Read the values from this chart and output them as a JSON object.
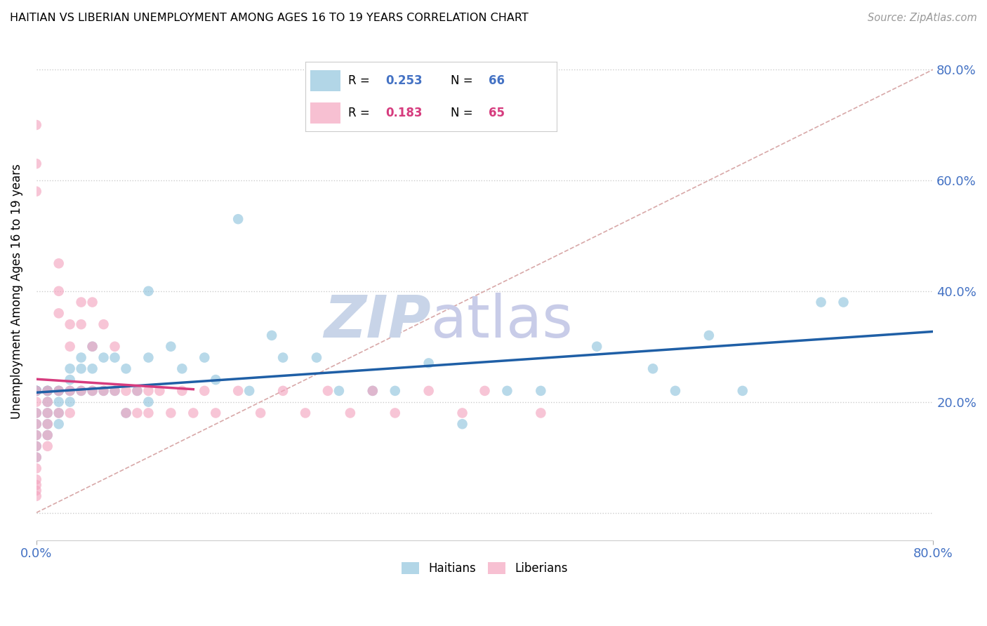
{
  "title": "HAITIAN VS LIBERIAN UNEMPLOYMENT AMONG AGES 16 TO 19 YEARS CORRELATION CHART",
  "source": "Source: ZipAtlas.com",
  "ylabel": "Unemployment Among Ages 16 to 19 years",
  "xlim": [
    0.0,
    0.8
  ],
  "ylim": [
    -0.05,
    0.85
  ],
  "haitians_color": "#92c5de",
  "liberians_color": "#f4a6c0",
  "haitians_line_color": "#1f5fa6",
  "liberians_line_color": "#d63c7e",
  "diagonal_color": "#d8a8a8",
  "watermark_zip_color": "#c8d4e8",
  "watermark_atlas_color": "#c8cce8",
  "haitians_x": [
    0.0,
    0.0,
    0.0,
    0.0,
    0.0,
    0.0,
    0.0,
    0.0,
    0.0,
    0.0,
    0.01,
    0.01,
    0.01,
    0.01,
    0.01,
    0.01,
    0.01,
    0.02,
    0.02,
    0.02,
    0.02,
    0.02,
    0.03,
    0.03,
    0.03,
    0.03,
    0.04,
    0.04,
    0.04,
    0.05,
    0.05,
    0.05,
    0.06,
    0.06,
    0.07,
    0.07,
    0.08,
    0.08,
    0.09,
    0.1,
    0.1,
    0.1,
    0.12,
    0.13,
    0.15,
    0.16,
    0.18,
    0.19,
    0.21,
    0.22,
    0.25,
    0.27,
    0.3,
    0.32,
    0.35,
    0.38,
    0.42,
    0.45,
    0.5,
    0.55,
    0.57,
    0.6,
    0.63,
    0.7,
    0.72
  ],
  "haitians_y": [
    0.22,
    0.22,
    0.22,
    0.22,
    0.22,
    0.18,
    0.16,
    0.14,
    0.12,
    0.1,
    0.22,
    0.22,
    0.22,
    0.2,
    0.18,
    0.16,
    0.14,
    0.22,
    0.22,
    0.2,
    0.18,
    0.16,
    0.26,
    0.24,
    0.22,
    0.2,
    0.28,
    0.26,
    0.22,
    0.3,
    0.26,
    0.22,
    0.28,
    0.22,
    0.28,
    0.22,
    0.26,
    0.18,
    0.22,
    0.4,
    0.28,
    0.2,
    0.3,
    0.26,
    0.28,
    0.24,
    0.53,
    0.22,
    0.32,
    0.28,
    0.28,
    0.22,
    0.22,
    0.22,
    0.27,
    0.16,
    0.22,
    0.22,
    0.3,
    0.26,
    0.22,
    0.32,
    0.22,
    0.38,
    0.38
  ],
  "liberians_x": [
    0.0,
    0.0,
    0.0,
    0.0,
    0.0,
    0.0,
    0.0,
    0.0,
    0.0,
    0.0,
    0.0,
    0.0,
    0.0,
    0.0,
    0.0,
    0.01,
    0.01,
    0.01,
    0.01,
    0.01,
    0.01,
    0.02,
    0.02,
    0.02,
    0.02,
    0.02,
    0.03,
    0.03,
    0.03,
    0.03,
    0.04,
    0.04,
    0.04,
    0.05,
    0.05,
    0.05,
    0.06,
    0.06,
    0.07,
    0.07,
    0.08,
    0.08,
    0.09,
    0.09,
    0.1,
    0.1,
    0.11,
    0.12,
    0.13,
    0.14,
    0.15,
    0.16,
    0.18,
    0.2,
    0.22,
    0.24,
    0.26,
    0.28,
    0.3,
    0.32,
    0.35,
    0.38,
    0.4,
    0.45
  ],
  "liberians_y": [
    0.22,
    0.2,
    0.18,
    0.16,
    0.14,
    0.12,
    0.1,
    0.08,
    0.06,
    0.04,
    0.7,
    0.63,
    0.58,
    0.05,
    0.03,
    0.22,
    0.2,
    0.18,
    0.16,
    0.14,
    0.12,
    0.45,
    0.4,
    0.36,
    0.22,
    0.18,
    0.34,
    0.3,
    0.22,
    0.18,
    0.38,
    0.34,
    0.22,
    0.38,
    0.3,
    0.22,
    0.34,
    0.22,
    0.3,
    0.22,
    0.22,
    0.18,
    0.22,
    0.18,
    0.22,
    0.18,
    0.22,
    0.18,
    0.22,
    0.18,
    0.22,
    0.18,
    0.22,
    0.18,
    0.22,
    0.18,
    0.22,
    0.18,
    0.22,
    0.18,
    0.22,
    0.18,
    0.22,
    0.18
  ]
}
